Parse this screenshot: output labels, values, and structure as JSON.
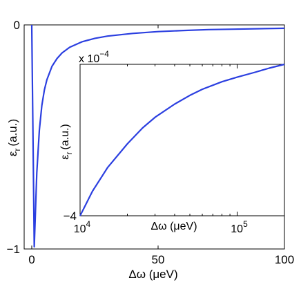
{
  "chart_data": [
    {
      "type": "line",
      "xlabel": "Δω (μeV)",
      "ylabel_main": "ε",
      "ylabel_sub": "r",
      "ylabel_unit": "(a.u.)",
      "xlim": [
        -3,
        100
      ],
      "ylim": [
        -1,
        0
      ],
      "xticks": [
        {
          "value": 0,
          "label": "0"
        },
        {
          "value": 50,
          "label": "50"
        },
        {
          "value": 100,
          "label": "100"
        }
      ],
      "yticks": [
        {
          "value": 0,
          "label": "0"
        },
        {
          "value": -1,
          "label": "−1"
        }
      ],
      "grid": false,
      "series": [
        {
          "color": "#2b3fe0",
          "x": [
            0,
            0.5,
            1,
            1.5,
            2,
            3,
            4,
            5,
            6,
            8,
            10,
            12,
            15,
            20,
            25,
            30,
            40,
            50,
            60,
            70,
            80,
            90,
            100
          ],
          "y": [
            0,
            -0.5,
            -0.99,
            -0.82,
            -0.66,
            -0.47,
            -0.36,
            -0.29,
            -0.245,
            -0.185,
            -0.15,
            -0.125,
            -0.1,
            -0.075,
            -0.06,
            -0.05,
            -0.038,
            -0.03,
            -0.025,
            -0.021,
            -0.019,
            -0.017,
            -0.015
          ]
        }
      ]
    },
    {
      "type": "line",
      "xscale": "log",
      "xlabel": "Δω (μeV)",
      "ylabel_main": "ε",
      "ylabel_sub": "r",
      "ylabel_unit": "(a.u.)",
      "multiplier_prefix": "x 10",
      "multiplier_exp": "−4",
      "xlim": [
        10000,
        200000
      ],
      "ylim": [
        -4,
        0
      ],
      "xticks": [
        {
          "value": 10000,
          "base": "10",
          "exp": "4"
        },
        {
          "value": 100000,
          "base": "10",
          "exp": "5"
        }
      ],
      "yticks": [
        {
          "value": -4,
          "label": "−4"
        }
      ],
      "grid": false,
      "series": [
        {
          "color": "#2b3fe0",
          "x": [
            10000,
            12000,
            15000,
            20000,
            25000,
            30000,
            40000,
            50000,
            60000,
            80000,
            100000,
            130000,
            160000,
            200000
          ],
          "y": [
            -4.0,
            -3.35,
            -2.72,
            -2.1,
            -1.68,
            -1.4,
            -1.05,
            -0.82,
            -0.66,
            -0.46,
            -0.34,
            -0.21,
            -0.1,
            0.0
          ]
        }
      ]
    }
  ]
}
